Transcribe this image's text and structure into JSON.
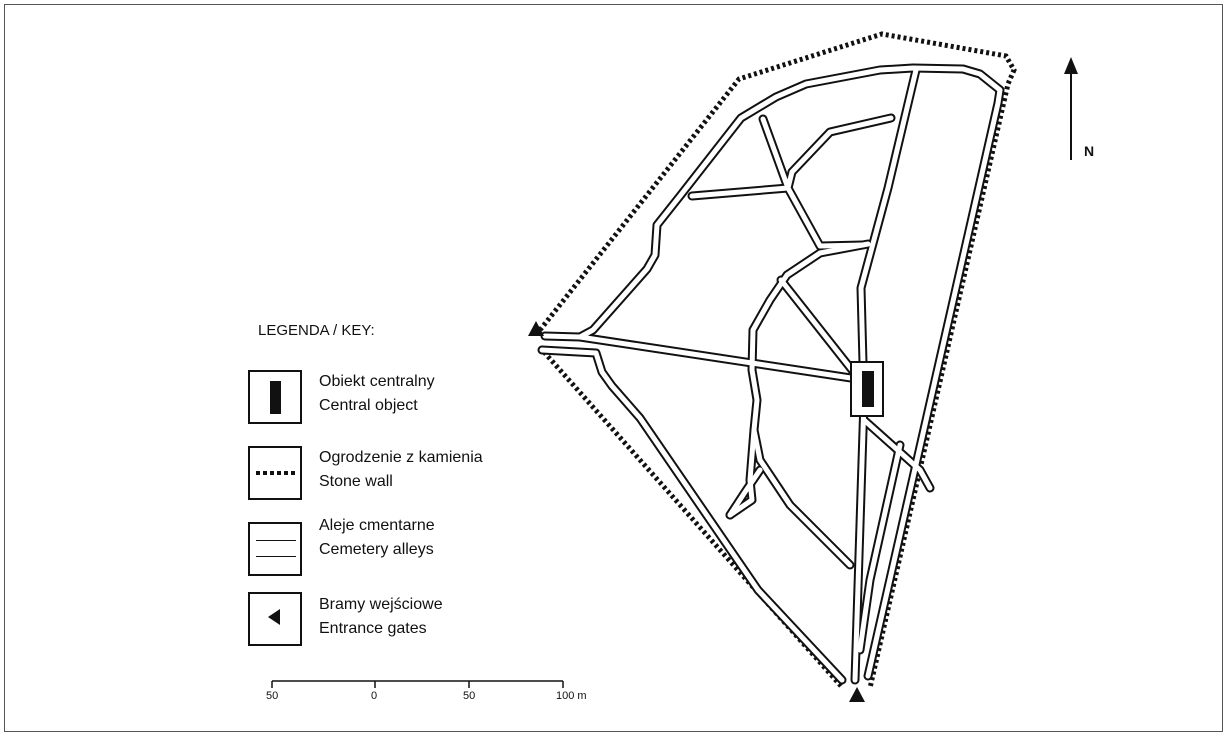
{
  "legend": {
    "title": "LEGENDA / KEY:",
    "items": [
      {
        "icon": "central-object-icon",
        "label_pl": "Obiekt centralny",
        "label_en": "Central object"
      },
      {
        "icon": "stone-wall-icon",
        "label_pl": "Ogrodzenie z kamienia",
        "label_en": "Stone wall"
      },
      {
        "icon": "alley-icon",
        "label_pl": "Aleje cmentarne",
        "label_en": "Cemetery alleys"
      },
      {
        "icon": "gate-icon",
        "label_pl": "Bramy wejściowe",
        "label_en": "Entrance gates"
      }
    ]
  },
  "scale_bar": {
    "labels": [
      "50",
      "0",
      "50",
      "100 m"
    ]
  },
  "north": {
    "label": "N"
  },
  "colors": {
    "ink": "#111111",
    "paper": "#ffffff",
    "frame": "#555555"
  }
}
